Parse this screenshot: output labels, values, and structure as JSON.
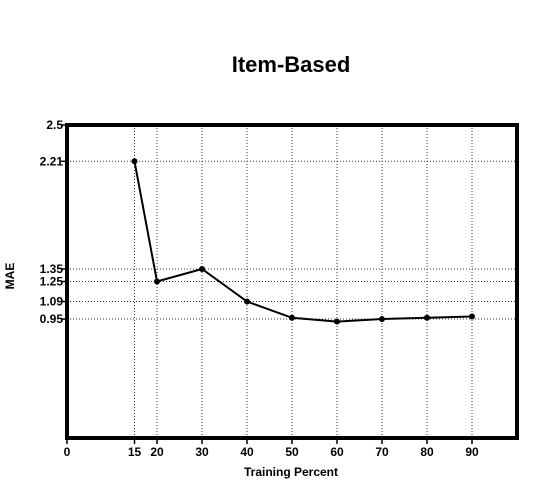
{
  "chart_data": {
    "type": "line",
    "title": "Item-Based",
    "xlabel": "Training Percent",
    "ylabel": "MAE",
    "xlim": [
      0,
      100
    ],
    "ylim": [
      0,
      2.5
    ],
    "x_ticks": [
      0,
      15,
      20,
      30,
      40,
      50,
      60,
      70,
      80,
      90
    ],
    "x_tick_labels": [
      "0",
      "15",
      "20",
      "30",
      "40",
      "50",
      "60",
      "70",
      "80",
      "90"
    ],
    "y_ticks": [
      0.95,
      1.09,
      1.25,
      1.35,
      2.21,
      2.5
    ],
    "y_tick_labels": [
      "0.95",
      "1.09",
      "1.25",
      "1.35",
      "2.21",
      "2.5"
    ],
    "grid": true,
    "series": [
      {
        "x": [
          15,
          20,
          30,
          40,
          50,
          60,
          70,
          80,
          90
        ],
        "y": [
          2.21,
          1.25,
          1.35,
          1.09,
          0.96,
          0.93,
          0.95,
          0.96,
          0.97
        ]
      }
    ]
  }
}
